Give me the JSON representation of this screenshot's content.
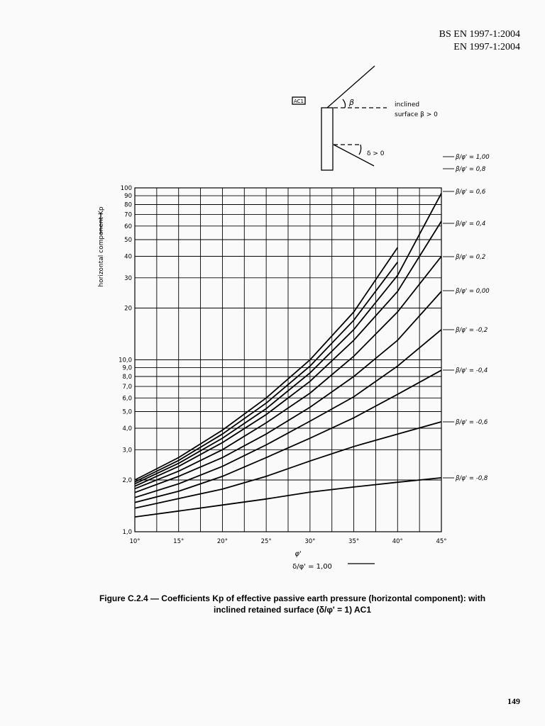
{
  "header": {
    "line1": "BS EN 1997-1:2004",
    "line2": "EN 1997-1:2004"
  },
  "diagram": {
    "tag": "AC1",
    "beta": "β",
    "surface_label": "inclined",
    "surface_label2": "surface β > 0",
    "delta_label": "δ > 0"
  },
  "chart_data": {
    "type": "line",
    "y_label": "horizontal component Kp",
    "x_label": "φ'",
    "x_label2": "δ/φ' = 1,00",
    "log_scale_y": true,
    "grid": true,
    "x": [
      10,
      15,
      20,
      25,
      30,
      35,
      40,
      45
    ],
    "xlim": [
      10,
      45
    ],
    "xticks": [
      {
        "value": 10,
        "label": "10°"
      },
      {
        "value": 15,
        "label": "15°"
      },
      {
        "value": 20,
        "label": "20°"
      },
      {
        "value": 25,
        "label": "25°"
      },
      {
        "value": 30,
        "label": "30°"
      },
      {
        "value": 35,
        "label": "35°"
      },
      {
        "value": 40,
        "label": "40°"
      },
      {
        "value": 45,
        "label": "45°"
      }
    ],
    "xgrid": [
      12.5,
      17.5,
      22.5,
      27.5,
      32.5,
      37.5,
      42.5
    ],
    "ylim": [
      1,
      100
    ],
    "yticks": [
      {
        "value": 1,
        "label": "1,0"
      },
      {
        "value": 2,
        "label": "2,0"
      },
      {
        "value": 3,
        "label": "3,0"
      },
      {
        "value": 4,
        "label": "4,0"
      },
      {
        "value": 5,
        "label": "5,0"
      },
      {
        "value": 6,
        "label": "6,0"
      },
      {
        "value": 7,
        "label": "7,0"
      },
      {
        "value": 8,
        "label": "8,0"
      },
      {
        "value": 9,
        "label": "9,0"
      },
      {
        "value": 10,
        "label": "10,0"
      },
      20,
      30,
      40,
      50,
      60,
      70,
      80,
      90,
      100
    ],
    "series": [
      {
        "name": "β/φ' = 1,00",
        "color": "#000000",
        "values": [
          2.0,
          2.7,
          3.9,
          6.0,
          10,
          19,
          45,
          null
        ]
      },
      {
        "name": "β/φ' = 0,8",
        "color": "#000000",
        "values": [
          1.95,
          2.6,
          3.7,
          5.6,
          9.2,
          17,
          37,
          null
        ]
      },
      {
        "name": "β/φ' = 0,6",
        "color": "#000000",
        "values": [
          1.9,
          2.5,
          3.5,
          5.2,
          8.4,
          15,
          31,
          93
        ]
      },
      {
        "name": "β/φ' = 0,4",
        "color": "#000000",
        "values": [
          1.84,
          2.4,
          3.3,
          4.8,
          7.5,
          13,
          25,
          64
        ]
      },
      {
        "name": "β/φ' = 0,2",
        "color": "#000000",
        "values": [
          1.78,
          2.25,
          3.0,
          4.3,
          6.4,
          10.5,
          19,
          40
        ]
      },
      {
        "name": "β/φ' = 0,00",
        "color": "#000000",
        "values": [
          1.69,
          2.1,
          2.7,
          3.7,
          5.3,
          8,
          13,
          25
        ]
      },
      {
        "name": "β/φ' = -0,2",
        "color": "#000000",
        "values": [
          1.58,
          1.9,
          2.4,
          3.2,
          4.4,
          6.1,
          9.2,
          15
        ]
      },
      {
        "name": "β/φ' = -0,4",
        "color": "#000000",
        "values": [
          1.48,
          1.72,
          2.1,
          2.7,
          3.5,
          4.6,
          6.3,
          8.7
        ]
      },
      {
        "name": "β/φ' = -0,6",
        "color": "#000000",
        "values": [
          1.37,
          1.56,
          1.77,
          2.1,
          2.58,
          3.13,
          3.7,
          4.36
        ]
      },
      {
        "name": "β/φ' = -0,8",
        "color": "#000000",
        "values": [
          1.22,
          1.32,
          1.43,
          1.55,
          1.7,
          1.82,
          1.94,
          2.06
        ]
      }
    ]
  },
  "caption": {
    "line1": "Figure C.2.4 — Coefficients Kp of effective passive earth pressure (horizontal component): with",
    "line2": "inclined retained surface (δ/φ' = 1) AC1"
  },
  "page_number": "149"
}
